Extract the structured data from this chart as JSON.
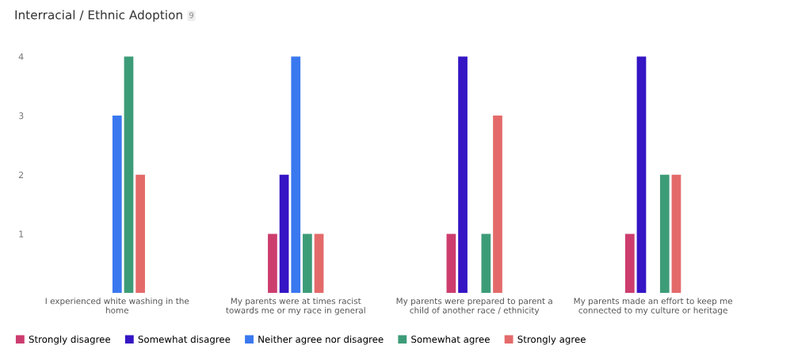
{
  "chart_data": {
    "type": "bar",
    "title": "Interracial / Ethnic Adoption",
    "annotations": [
      "9"
    ],
    "categories": [
      "I experienced white washing in the home",
      "My parents were at times racist towards me or my race in general",
      "My parents were prepared to parent a child of another race / ethnicity",
      "My parents made an effort to keep me connected to my culture or heritage"
    ],
    "series": [
      {
        "name": "Strongly disagree",
        "color": "#cc3d6e",
        "values": [
          0,
          1,
          1,
          1
        ]
      },
      {
        "name": "Somewhat disagree",
        "color": "#3515c4",
        "values": [
          0,
          2,
          4,
          4
        ]
      },
      {
        "name": "Neither agree nor disagree",
        "color": "#3a78ef",
        "values": [
          3,
          4,
          0,
          0
        ]
      },
      {
        "name": "Somewhat agree",
        "color": "#3d9c78",
        "values": [
          4,
          1,
          1,
          2
        ]
      },
      {
        "name": "Strongly agree",
        "color": "#e46a6a",
        "values": [
          2,
          1,
          3,
          2
        ]
      }
    ],
    "ylim": [
      0,
      4
    ],
    "yticks": [
      1,
      2,
      3,
      4
    ],
    "grid": false,
    "legend": "bottom left"
  }
}
